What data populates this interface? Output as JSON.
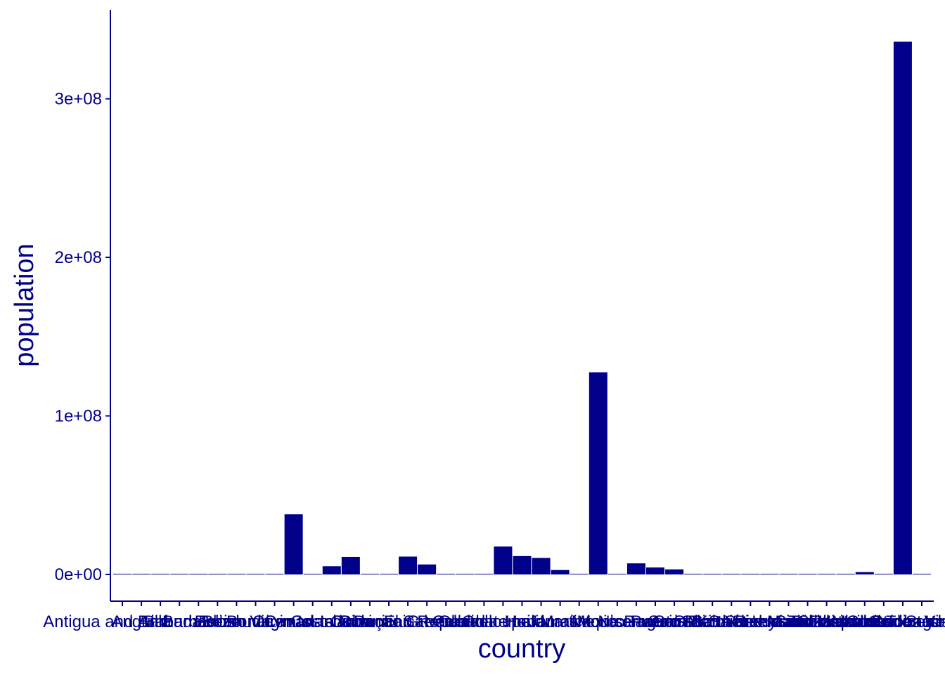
{
  "chart_data": {
    "type": "bar",
    "title": "",
    "xlabel": "country",
    "ylabel": "population",
    "ylim": [
      0,
      350000000
    ],
    "yticks": [
      0,
      100000000,
      200000000,
      300000000
    ],
    "ytick_labels": [
      "0e+00",
      "1e+08",
      "2e+08",
      "3e+08"
    ],
    "grid": false,
    "legend": "none",
    "bar_color": "#00008B",
    "axis_color": "#00008B",
    "categories": [
      "Antigua and Barbuda",
      "Anguilla",
      "Aruba",
      "Bahamas",
      "Barbados",
      "Belize",
      "Bermuda",
      "Bonaire",
      "British Virgin Islands",
      "Canada",
      "Cayman Islands",
      "Costa Rica",
      "Cuba",
      "Curaçao",
      "Dominica",
      "Dominican Republic",
      "El Salvador",
      "Greenland",
      "Grenada",
      "Guadeloupe",
      "Guatemala",
      "Haiti",
      "Honduras",
      "Jamaica",
      "Martinique",
      "Mexico",
      "Montserrat",
      "Nicaragua",
      "Panama",
      "Puerto Rico",
      "Saba",
      "Saint Barthélemy",
      "Saint Kitts and Nevis",
      "Saint Lucia",
      "Saint Martin",
      "Saint Pierre and Miquelon",
      "Saint Vincent and the Grenadines",
      "Sint Eustatius",
      "Sint Maarten",
      "Trinidad and Tobago",
      "Turks and Caicos Islands",
      "United States",
      "United States Virgin Islands"
    ],
    "values": [
      100000,
      15000,
      106000,
      400000,
      288000,
      405000,
      64000,
      20000,
      31000,
      38000000,
      68000,
      5200000,
      11100000,
      190000,
      72000,
      11300000,
      6300000,
      56000,
      125000,
      395000,
      17600000,
      11600000,
      10400000,
      2800000,
      360000,
      127500000,
      5000,
      7000000,
      4400000,
      3200000,
      2000,
      10000,
      48000,
      180000,
      32000,
      6000,
      104000,
      3000,
      44000,
      1500000,
      46000,
      336000000,
      99000
    ]
  }
}
